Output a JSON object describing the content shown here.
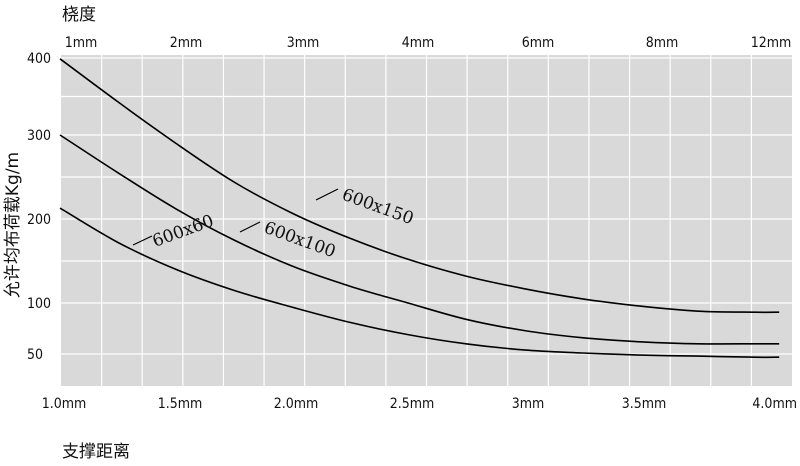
{
  "chart_data": {
    "type": "line",
    "title": "",
    "top_axis_title": "桡度",
    "top_ticks": [
      "1mm",
      "2mm",
      "3mm",
      "4mm",
      "6mm",
      "8mm",
      "12mm"
    ],
    "xlabel": "支撑距离",
    "ylabel": "允许均布荷载Kg/m",
    "x_tick_labels": [
      "1.0mm",
      "1.5mm",
      "2.0mm",
      "2.5mm",
      "3mm",
      "3.5mm",
      "4.0mm"
    ],
    "x_ticks": [
      1.0,
      1.5,
      2.0,
      2.5,
      3.0,
      3.5,
      4.0
    ],
    "xlim": [
      1.0,
      4.1
    ],
    "y_tick_labels": [
      "400",
      "300",
      "200",
      "100",
      "50"
    ],
    "y_ticks": [
      400,
      300,
      200,
      100,
      50
    ],
    "ylim": [
      20,
      410
    ],
    "grid": true,
    "series": [
      {
        "name": "600x150",
        "x": [
          1.0,
          1.25,
          1.5,
          1.75,
          2.0,
          2.25,
          2.5,
          2.75,
          3.0,
          3.25,
          3.5,
          3.75,
          4.0,
          4.1
        ],
        "y": [
          399,
          343,
          290,
          244,
          207,
          177,
          152,
          132,
          117,
          105,
          97,
          92,
          91,
          91
        ]
      },
      {
        "name": "600x100",
        "x": [
          1.0,
          1.25,
          1.5,
          1.75,
          2.0,
          2.25,
          2.5,
          2.75,
          3.0,
          3.25,
          3.5,
          3.75,
          4.0,
          4.1
        ],
        "y": [
          300,
          255,
          212,
          175,
          144,
          120,
          100,
          84,
          73,
          66,
          62,
          60,
          60,
          60
        ]
      },
      {
        "name": "600x60",
        "x": [
          1.0,
          1.25,
          1.5,
          1.75,
          2.0,
          2.25,
          2.5,
          2.75,
          3.0,
          3.25,
          3.5,
          3.75,
          4.0,
          4.1
        ],
        "y": [
          213,
          172,
          140,
          115,
          96,
          81,
          69,
          60,
          54,
          51,
          49,
          48,
          47,
          47
        ]
      }
    ],
    "colors": {
      "plot_background": "#d9d9d9",
      "grid": "#ffffff",
      "line": "#000000"
    }
  }
}
